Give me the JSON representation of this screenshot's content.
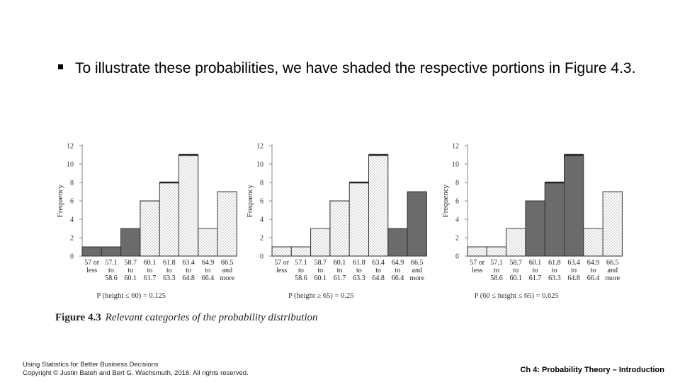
{
  "slide": {
    "bullet_text": "To illustrate these probabilities, we have shaded the respective portions in Figure 4.3.",
    "caption_label": "Figure 4.3",
    "caption_text": "Relevant categories of the probability distribution",
    "footer_line1": "Using Statistics for Better Business Decisions",
    "footer_line2": "Copyright © Justin Bateh and Bert G. Wachsmuth, 2016. All rights reserved.",
    "footer_right": "Ch 4: Probability Theory – Introduction"
  },
  "colors": {
    "shaded": "#6b6b6b",
    "unshaded": "#ffffff",
    "stipple": "#555555",
    "axis": "#888888"
  },
  "chart_data": [
    {
      "type": "bar",
      "ylabel": "Frequency",
      "ylim": [
        0,
        12
      ],
      "yticks": [
        0,
        2,
        4,
        6,
        8,
        10,
        12
      ],
      "categories": [
        [
          "57 or",
          "less",
          ""
        ],
        [
          "57.1",
          "to",
          "58.6"
        ],
        [
          "58.7",
          "to",
          "60.1"
        ],
        [
          "60.1",
          "to",
          "61.7"
        ],
        [
          "61.8",
          "to",
          "63.3"
        ],
        [
          "63.4",
          "to",
          "64.8"
        ],
        [
          "64.9",
          "to",
          "66.4"
        ],
        [
          "66.5",
          "and",
          "more"
        ]
      ],
      "values": [
        1,
        1,
        3,
        6,
        8,
        11,
        3,
        7
      ],
      "shaded": [
        true,
        true,
        true,
        false,
        false,
        false,
        false,
        false
      ],
      "annotation": "P (height ≤ 60) = 0.125"
    },
    {
      "type": "bar",
      "ylabel": "Frequency",
      "ylim": [
        0,
        12
      ],
      "yticks": [
        0,
        2,
        4,
        6,
        8,
        10,
        12
      ],
      "categories": [
        [
          "57 or",
          "less",
          ""
        ],
        [
          "57.1",
          "to",
          "58.6"
        ],
        [
          "58.7",
          "to",
          "60.1"
        ],
        [
          "60.1",
          "to",
          "61.7"
        ],
        [
          "61.8",
          "to",
          "63.3"
        ],
        [
          "63.4",
          "to",
          "64.8"
        ],
        [
          "64.9",
          "to",
          "66.4"
        ],
        [
          "66.5",
          "and",
          "more"
        ]
      ],
      "values": [
        1,
        1,
        3,
        6,
        8,
        11,
        3,
        7
      ],
      "shaded": [
        false,
        false,
        false,
        false,
        false,
        false,
        true,
        true
      ],
      "annotation": "P (height ≥ 65) = 0.25"
    },
    {
      "type": "bar",
      "ylabel": "Frequency",
      "ylim": [
        0,
        12
      ],
      "yticks": [
        0,
        2,
        4,
        6,
        8,
        10,
        12
      ],
      "categories": [
        [
          "57 or",
          "less",
          ""
        ],
        [
          "57.1",
          "to",
          "58.6"
        ],
        [
          "58.7",
          "to",
          "60.1"
        ],
        [
          "60.1",
          "to",
          "61.7"
        ],
        [
          "61.8",
          "to",
          "63.3"
        ],
        [
          "63.4",
          "to",
          "64.8"
        ],
        [
          "64.9",
          "to",
          "66.4"
        ],
        [
          "66.5",
          "and",
          "more"
        ]
      ],
      "values": [
        1,
        1,
        3,
        6,
        8,
        11,
        3,
        7
      ],
      "shaded": [
        false,
        false,
        false,
        true,
        true,
        true,
        false,
        false
      ],
      "annotation": "P (60 ≤ height ≤ 65) = 0.625"
    }
  ]
}
